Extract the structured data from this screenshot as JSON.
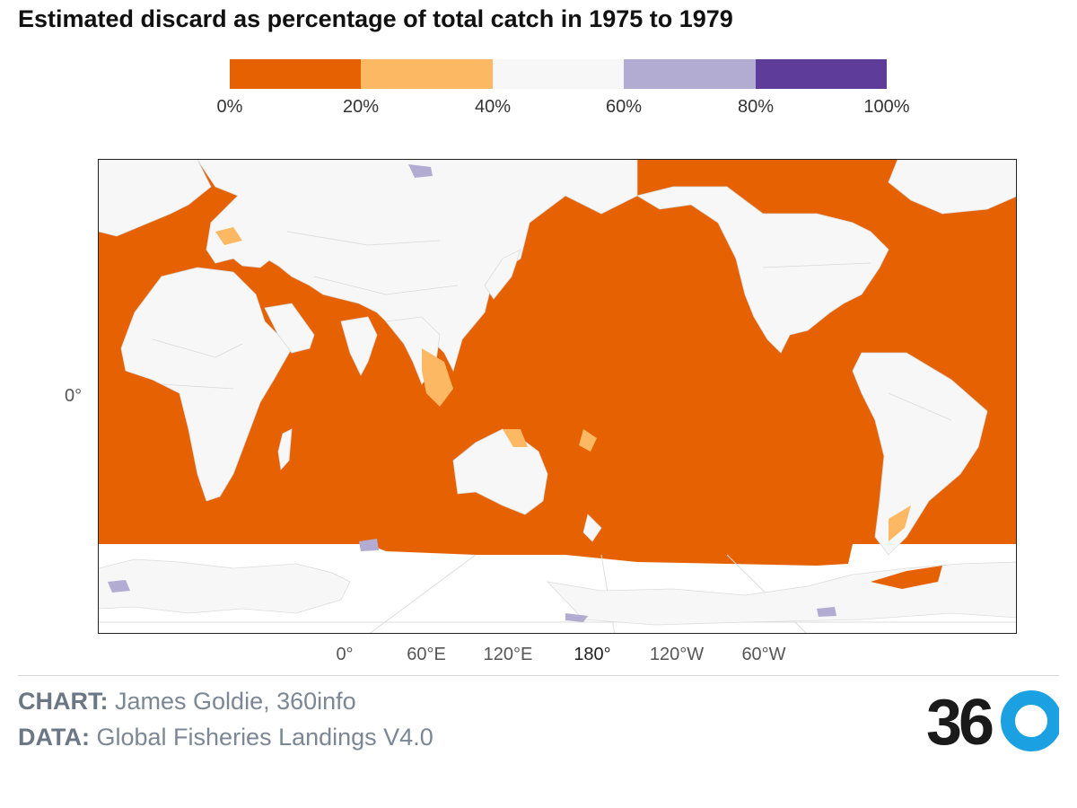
{
  "title": "Estimated discard as percentage of total catch in 1975 to 1979",
  "legend": {
    "colors": [
      "#e66101",
      "#fdb863",
      "#f7f7f7",
      "#b2abd2",
      "#5e3c99"
    ],
    "ticks": [
      "0%",
      "20%",
      "40%",
      "60%",
      "80%",
      "100%"
    ]
  },
  "map": {
    "projection": "equirectangular, centered on 150°E",
    "ocean_color": "#e66101",
    "land_color": "#f7f7f7",
    "lat_label": "0°",
    "lon_labels": [
      "0°",
      "60°E",
      "120°E",
      "180°",
      "120°W",
      "60°W"
    ]
  },
  "footer": {
    "chart_label": "CHART:",
    "chart_value": "James Goldie, 360info",
    "data_label": "DATA:",
    "data_value": "Global Fisheries Landings V4.0",
    "logo_text": "360"
  }
}
